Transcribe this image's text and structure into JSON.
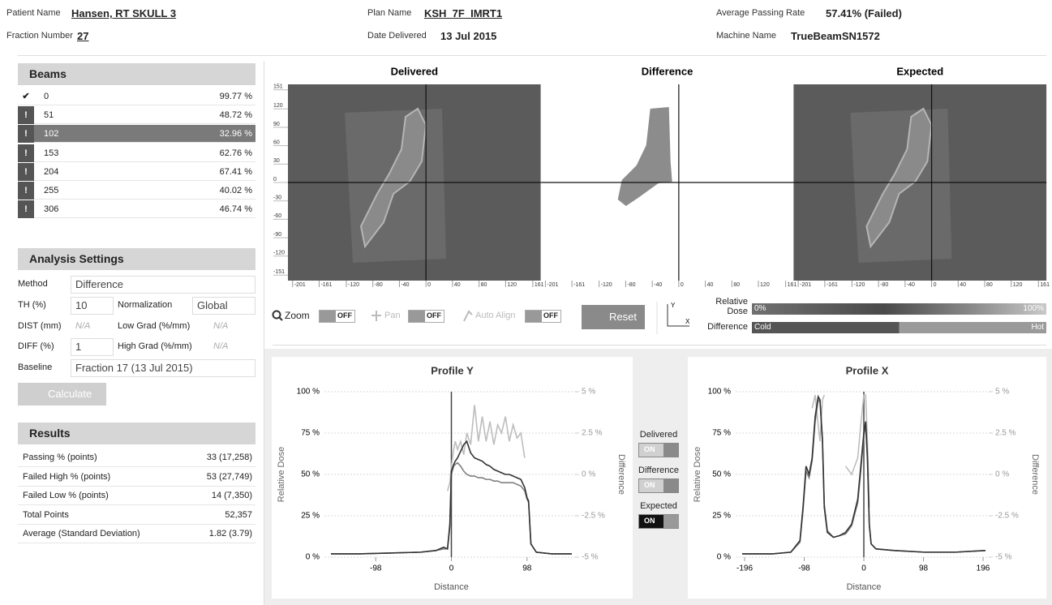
{
  "header": {
    "patient_name_label": "Patient Name",
    "patient_name": "Hansen, RT SKULL 3",
    "plan_name_label": "Plan Name",
    "plan_name": "KSH_7F_IMRT1",
    "passing_rate_label": "Average Passing Rate",
    "passing_rate": "57.41% (Failed)",
    "fraction_label": "Fraction Number",
    "fraction": "27",
    "date_label": "Date Delivered",
    "date": "13 Jul 2015",
    "machine_label": "Machine Name",
    "machine": "TrueBeamSN1572"
  },
  "beams": {
    "title": "Beams",
    "selected": 2,
    "rows": [
      {
        "icon": "✔",
        "passed": true,
        "angle": "0",
        "rate": "99.77 %"
      },
      {
        "icon": "!",
        "passed": false,
        "angle": "51",
        "rate": "48.72 %"
      },
      {
        "icon": "!",
        "passed": false,
        "angle": "102",
        "rate": "32.96 %"
      },
      {
        "icon": "!",
        "passed": false,
        "angle": "153",
        "rate": "62.76 %"
      },
      {
        "icon": "!",
        "passed": false,
        "angle": "204",
        "rate": "67.41 %"
      },
      {
        "icon": "!",
        "passed": false,
        "angle": "255",
        "rate": "40.02 %"
      },
      {
        "icon": "!",
        "passed": false,
        "angle": "306",
        "rate": "46.74 %"
      }
    ]
  },
  "analysis": {
    "title": "Analysis Settings",
    "method_label": "Method",
    "method": "Difference",
    "th_label": "TH (%)",
    "th": "10",
    "normalization_label": "Normalization",
    "normalization": "Global",
    "dist_label": "DIST (mm)",
    "dist": "N/A",
    "low_grad_label": "Low Grad (%/mm)",
    "low_grad": "N/A",
    "diff_label": "DIFF (%)",
    "diff": "1",
    "high_grad_label": "High Grad (%/mm)",
    "high_grad": "N/A",
    "baseline_label": "Baseline",
    "baseline": "Fraction 17 (13 Jul 2015)",
    "calculate": "Calculate"
  },
  "results": {
    "title": "Results",
    "rows": [
      [
        "Passing % (points)",
        "33 (17,258)"
      ],
      [
        "Failed High % (points)",
        "53 (27,749)"
      ],
      [
        "Failed Low % (points)",
        "14 (7,350)"
      ],
      [
        "Total Points",
        "52,357"
      ],
      [
        "Average (Standard Deviation)",
        "1.82 (3.79)"
      ]
    ]
  },
  "images": {
    "panels": [
      "Delivered",
      "Difference",
      "Expected"
    ],
    "xlim": [
      -208,
      173
    ],
    "ylim": [
      -160,
      160
    ],
    "xticks": [
      -201,
      -161,
      -120,
      -80,
      -40,
      0,
      40,
      80,
      120,
      161
    ],
    "yticks": [
      151,
      120,
      90,
      60,
      30,
      0,
      -30,
      -60,
      -90,
      -120,
      -151
    ]
  },
  "controls": {
    "zoom": "Zoom",
    "zoom_state": "OFF",
    "pan": "Pan",
    "pan_state": "OFF",
    "auto_align": "Auto Align",
    "auto_align_state": "OFF",
    "reset": "Reset",
    "axis_y": "Y",
    "axis_x": "X",
    "dose_label": "Relative Dose",
    "dose_min": "0%",
    "dose_max": "100%",
    "difference_label": "Difference",
    "difference_min": "Cold",
    "difference_max": "Hot"
  },
  "toggles": [
    "ON",
    "ON",
    "ON"
  ],
  "chart_data": [
    {
      "type": "line",
      "title": "Profile Y",
      "xlabel": "Distance",
      "ylabel": "Relative Dose",
      "y2label": "Difference",
      "x": [
        -156,
        -120,
        -80,
        -40,
        -20,
        -10,
        -5,
        -2,
        0,
        3,
        5,
        8,
        12,
        16,
        20,
        25,
        30,
        35,
        40,
        45,
        50,
        55,
        60,
        65,
        70,
        75,
        80,
        85,
        90,
        95,
        98,
        100,
        103,
        110,
        130,
        156
      ],
      "xlim": [
        -156,
        156
      ],
      "xticks": [
        -98,
        0,
        98
      ],
      "ylim": [
        0,
        100
      ],
      "yticks": [
        {
          "value": 0,
          "label": "0 %"
        },
        {
          "value": 25,
          "label": "25 %"
        },
        {
          "value": 50,
          "label": "50 %"
        },
        {
          "value": 75,
          "label": "75 %"
        },
        {
          "value": 100,
          "label": "100 %"
        }
      ],
      "y2lim": [
        -5,
        5
      ],
      "y2ticks": [
        {
          "value": -5,
          "label": "-5 %"
        },
        {
          "value": -2.5,
          "label": "-2.5 %"
        },
        {
          "value": 0,
          "label": "0 %"
        },
        {
          "value": 2.5,
          "label": "2.5 %"
        },
        {
          "value": 5,
          "label": "5 %"
        }
      ],
      "grid": true,
      "cursor_x": 0,
      "series": [
        {
          "name": "Delivered",
          "color": "#333333",
          "values": [
            2,
            2,
            2.5,
            3,
            4,
            6,
            5,
            20,
            52,
            56,
            58,
            60,
            64,
            68,
            70,
            63,
            60,
            59,
            58,
            56,
            55,
            53,
            52,
            51,
            50,
            50,
            49,
            48,
            47,
            42,
            36,
            34,
            8,
            3,
            2,
            2
          ]
        },
        {
          "name": "Difference",
          "color": "#bdbdbd",
          "axis": "y2",
          "values": [
            null,
            null,
            null,
            null,
            null,
            null,
            -1,
            -0.5,
            0.5,
            1.5,
            2,
            1.5,
            2,
            1.2,
            2.5,
            1.8,
            4.2,
            2,
            3.5,
            2,
            3.2,
            1.8,
            3,
            2.5,
            3.5,
            2,
            3,
            2.2,
            2.5,
            1,
            null,
            null,
            null,
            null,
            null,
            null
          ]
        },
        {
          "name": "Expected",
          "color": "#808080",
          "values": [
            2,
            2,
            2.5,
            3,
            4,
            5,
            5,
            18,
            50,
            55,
            56,
            57,
            55,
            52,
            50,
            49,
            49,
            48,
            48,
            47,
            47,
            46,
            46,
            45,
            45,
            45,
            45,
            44,
            43,
            40,
            35,
            33,
            8,
            3,
            2,
            2
          ]
        }
      ]
    },
    {
      "type": "line",
      "title": "Profile X",
      "xlabel": "Distance",
      "ylabel": "Relative Dose",
      "y2label": "Difference",
      "x": [
        -200,
        -150,
        -120,
        -105,
        -100,
        -95,
        -90,
        -85,
        -80,
        -75,
        -72,
        -68,
        -65,
        -60,
        -50,
        -40,
        -30,
        -20,
        -10,
        -5,
        0,
        3,
        6,
        9,
        12,
        20,
        50,
        100,
        150,
        200
      ],
      "xlim": [
        -200,
        200
      ],
      "xticks": [
        -196,
        -98,
        0,
        98,
        196
      ],
      "ylim": [
        0,
        100
      ],
      "yticks": [
        {
          "value": 0,
          "label": "0 %"
        },
        {
          "value": 25,
          "label": "25 %"
        },
        {
          "value": 50,
          "label": "50 %"
        },
        {
          "value": 75,
          "label": "75 %"
        },
        {
          "value": 100,
          "label": "100 %"
        }
      ],
      "y2lim": [
        -5,
        5
      ],
      "y2ticks": [
        {
          "value": -5,
          "label": "-5 %"
        },
        {
          "value": -2.5,
          "label": "-2.5 %"
        },
        {
          "value": 0,
          "label": "0 %"
        },
        {
          "value": 2.5,
          "label": "2.5 %"
        },
        {
          "value": 5,
          "label": "5 %"
        }
      ],
      "grid": true,
      "cursor_x": 0,
      "series": [
        {
          "name": "Delivered",
          "color": "#333333",
          "values": [
            2,
            2,
            3,
            10,
            30,
            55,
            50,
            60,
            85,
            97,
            95,
            70,
            30,
            15,
            12,
            13,
            15,
            20,
            35,
            55,
            75,
            82,
            60,
            20,
            8,
            5,
            4,
            3,
            3,
            4
          ]
        },
        {
          "name": "Difference",
          "color": "#bdbdbd",
          "axis": "y2",
          "values": [
            null,
            null,
            null,
            null,
            null,
            null,
            null,
            4,
            4.8,
            3,
            2,
            4.5,
            4.8,
            null,
            null,
            null,
            0.5,
            0,
            1,
            3,
            4.8,
            4.8,
            2,
            -2,
            null,
            null,
            null,
            null,
            null,
            null
          ]
        },
        {
          "name": "Expected",
          "color": "#808080",
          "values": [
            2,
            2,
            3,
            9,
            28,
            52,
            48,
            58,
            82,
            95,
            94,
            72,
            32,
            16,
            12,
            13,
            14,
            19,
            33,
            52,
            73,
            80,
            58,
            19,
            8,
            5,
            4,
            3,
            3,
            4
          ]
        }
      ]
    }
  ]
}
